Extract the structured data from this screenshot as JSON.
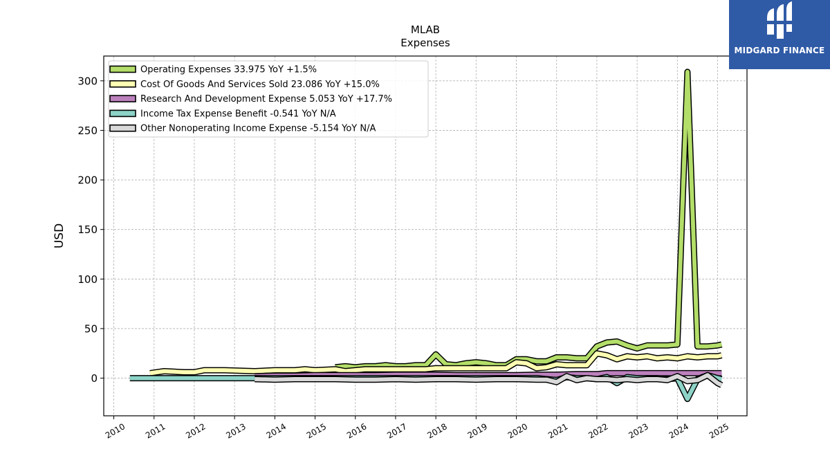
{
  "brand": {
    "name": "MIDGARD FINANCE",
    "bg_color": "#2f5aa6"
  },
  "chart_data": {
    "type": "line",
    "title": "MLAB",
    "subtitle": "Expenses",
    "xlabel": "",
    "ylabel": "USD",
    "xlim": [
      2009.75,
      2025.73
    ],
    "ylim": [
      -38,
      325
    ],
    "x_ticks": [
      "2010",
      "2011",
      "2012",
      "2013",
      "2014",
      "2015",
      "2016",
      "2017",
      "2018",
      "2019",
      "2020",
      "2021",
      "2022",
      "2023",
      "2024",
      "2025"
    ],
    "y_ticks": [
      0,
      50,
      100,
      150,
      200,
      250,
      300
    ],
    "grid": true,
    "legend_position": "top-left",
    "series": [
      {
        "name": "Operating Expenses",
        "legend": "Operating Expenses  33.975 YoY +1.5%",
        "color": "#b3de69",
        "points": [
          [
            2015.5,
            11
          ],
          [
            2015.75,
            12
          ],
          [
            2016,
            11
          ],
          [
            2016.25,
            12
          ],
          [
            2016.5,
            12
          ],
          [
            2016.75,
            13
          ],
          [
            2017,
            12
          ],
          [
            2017.25,
            12
          ],
          [
            2017.5,
            13
          ],
          [
            2017.75,
            13
          ],
          [
            2018,
            24
          ],
          [
            2018.25,
            14
          ],
          [
            2018.5,
            13
          ],
          [
            2018.75,
            15
          ],
          [
            2019,
            16
          ],
          [
            2019.25,
            15
          ],
          [
            2019.5,
            13
          ],
          [
            2019.75,
            13
          ],
          [
            2020,
            19
          ],
          [
            2020.25,
            19
          ],
          [
            2020.5,
            17
          ],
          [
            2020.75,
            17
          ],
          [
            2021,
            21
          ],
          [
            2021.25,
            21
          ],
          [
            2021.5,
            20
          ],
          [
            2021.75,
            20
          ],
          [
            2022,
            32
          ],
          [
            2022.25,
            36
          ],
          [
            2022.5,
            37
          ],
          [
            2022.75,
            33
          ],
          [
            2023,
            30
          ],
          [
            2023.25,
            33
          ],
          [
            2023.5,
            33
          ],
          [
            2023.75,
            33
          ],
          [
            2024,
            34
          ],
          [
            2024.25,
            309
          ],
          [
            2024.5,
            32
          ],
          [
            2024.75,
            32
          ],
          [
            2025,
            33
          ],
          [
            2025.1,
            34
          ]
        ]
      },
      {
        "name": "Cost Of Goods And Services Sold",
        "legend": "Cost Of Goods And Services Sold  23.086 YoY +15.0%",
        "color": "#ffffb3",
        "points": [
          [
            2010.9,
            5
          ],
          [
            2011.25,
            7
          ],
          [
            2011.75,
            6
          ],
          [
            2012,
            6
          ],
          [
            2012.25,
            8
          ],
          [
            2012.75,
            8
          ],
          [
            2013.5,
            7
          ],
          [
            2014,
            8
          ],
          [
            2014.5,
            8
          ],
          [
            2014.75,
            9
          ],
          [
            2015,
            8
          ],
          [
            2015.5,
            9
          ],
          [
            2015.75,
            7
          ],
          [
            2016,
            8
          ],
          [
            2016.25,
            9
          ],
          [
            2016.5,
            9
          ],
          [
            2016.75,
            9
          ],
          [
            2017,
            9
          ],
          [
            2017.25,
            9
          ],
          [
            2017.5,
            9
          ],
          [
            2017.75,
            9
          ],
          [
            2018,
            10
          ],
          [
            2018.25,
            10
          ],
          [
            2018.5,
            10
          ],
          [
            2018.75,
            10
          ],
          [
            2019,
            10
          ],
          [
            2019.25,
            10
          ],
          [
            2019.5,
            10
          ],
          [
            2019.75,
            10
          ],
          [
            2020,
            16
          ],
          [
            2020.25,
            15
          ],
          [
            2020.5,
            10
          ],
          [
            2020.75,
            11
          ],
          [
            2021,
            14
          ],
          [
            2021.25,
            13
          ],
          [
            2021.5,
            13
          ],
          [
            2021.75,
            13
          ],
          [
            2022,
            25
          ],
          [
            2022.25,
            23
          ],
          [
            2022.5,
            19
          ],
          [
            2022.75,
            22
          ],
          [
            2023,
            21
          ],
          [
            2023.25,
            22
          ],
          [
            2023.5,
            20
          ],
          [
            2023.75,
            21
          ],
          [
            2024,
            20
          ],
          [
            2024.25,
            22
          ],
          [
            2024.5,
            21
          ],
          [
            2024.75,
            22
          ],
          [
            2025,
            22
          ],
          [
            2025.1,
            23
          ]
        ]
      },
      {
        "name": "Research And Development Expense",
        "legend": "Research And Development Expense  5.053 YoY +17.7%",
        "color": "#bc80bd",
        "points": [
          [
            2013.5,
            2
          ],
          [
            2014,
            2.5
          ],
          [
            2014.5,
            2.5
          ],
          [
            2015,
            3
          ],
          [
            2015.5,
            3
          ],
          [
            2016,
            3
          ],
          [
            2016.5,
            3
          ],
          [
            2017,
            3.5
          ],
          [
            2017.5,
            3.5
          ],
          [
            2018,
            3.5
          ],
          [
            2018.5,
            3
          ],
          [
            2019,
            3
          ],
          [
            2019.5,
            3
          ],
          [
            2020,
            3
          ],
          [
            2020.5,
            3.5
          ],
          [
            2021,
            3.5
          ],
          [
            2021.5,
            4
          ],
          [
            2022,
            4
          ],
          [
            2022.25,
            5
          ],
          [
            2022.5,
            5
          ],
          [
            2023,
            5
          ],
          [
            2023.5,
            5
          ],
          [
            2024,
            5
          ],
          [
            2024.5,
            5
          ],
          [
            2025,
            5
          ],
          [
            2025.1,
            5
          ]
        ]
      },
      {
        "name": "Income Tax Expense Benefit",
        "legend": "Income Tax Expense Benefit  -0.541 YoY N/A",
        "color": "#8dd3c7",
        "points": [
          [
            2010.4,
            0
          ],
          [
            2011,
            0
          ],
          [
            2011.5,
            0
          ],
          [
            2012,
            0
          ],
          [
            2012.5,
            0
          ],
          [
            2013,
            0
          ],
          [
            2013.5,
            0
          ],
          [
            2014,
            0
          ],
          [
            2014.5,
            0
          ],
          [
            2015,
            0
          ],
          [
            2015.5,
            0
          ],
          [
            2016,
            0
          ],
          [
            2016.5,
            0
          ],
          [
            2017,
            0
          ],
          [
            2017.5,
            0
          ],
          [
            2018,
            0
          ],
          [
            2018.5,
            0
          ],
          [
            2019,
            0
          ],
          [
            2019.5,
            0
          ],
          [
            2020,
            0
          ],
          [
            2020.5,
            0
          ],
          [
            2020.75,
            -1
          ],
          [
            2021,
            -2
          ],
          [
            2021.25,
            1
          ],
          [
            2021.5,
            0
          ],
          [
            2021.75,
            0
          ],
          [
            2022,
            -1
          ],
          [
            2022.25,
            1
          ],
          [
            2022.5,
            -5
          ],
          [
            2022.75,
            1
          ],
          [
            2023,
            0
          ],
          [
            2023.5,
            0
          ],
          [
            2023.75,
            -1
          ],
          [
            2024,
            0
          ],
          [
            2024.25,
            -21
          ],
          [
            2024.5,
            -1
          ],
          [
            2024.75,
            3
          ],
          [
            2025,
            0
          ],
          [
            2025.1,
            -1
          ]
        ]
      },
      {
        "name": "Other Nonoperating Income Expense",
        "legend": "Other Nonoperating Income Expense  -5.154 YoY N/A",
        "color": "#d9d9d9",
        "points": [
          [
            2013.5,
            -1
          ],
          [
            2014,
            -1.5
          ],
          [
            2014.5,
            -1
          ],
          [
            2015,
            -1
          ],
          [
            2015.5,
            -1
          ],
          [
            2016,
            -1.5
          ],
          [
            2016.5,
            -1.5
          ],
          [
            2017,
            -1
          ],
          [
            2017.5,
            -1.5
          ],
          [
            2018,
            -1
          ],
          [
            2018.5,
            -1
          ],
          [
            2019,
            -1.5
          ],
          [
            2019.5,
            -1
          ],
          [
            2020,
            -1
          ],
          [
            2020.5,
            -1.5
          ],
          [
            2020.75,
            -1.5
          ],
          [
            2021,
            -4
          ],
          [
            2021.25,
            2
          ],
          [
            2021.5,
            -2
          ],
          [
            2021.75,
            0
          ],
          [
            2022,
            -1
          ],
          [
            2022.25,
            -1
          ],
          [
            2022.5,
            -2
          ],
          [
            2022.75,
            -1
          ],
          [
            2023,
            -2
          ],
          [
            2023.25,
            -1
          ],
          [
            2023.5,
            -1
          ],
          [
            2023.75,
            -2
          ],
          [
            2024,
            2
          ],
          [
            2024.25,
            -3
          ],
          [
            2024.5,
            -2
          ],
          [
            2024.75,
            3
          ],
          [
            2025,
            -5
          ],
          [
            2025.1,
            -7
          ]
        ]
      }
    ]
  }
}
